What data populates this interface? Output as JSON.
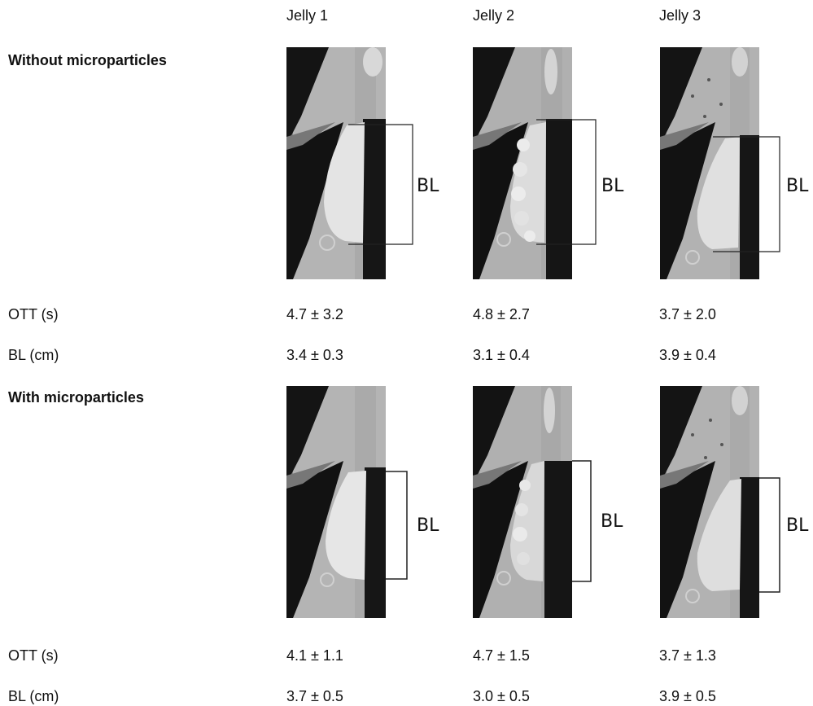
{
  "columns": [
    "Jelly 1",
    "Jelly 2",
    "Jelly 3"
  ],
  "sections": [
    {
      "title": "Without microparticles",
      "bracket_label": "BL",
      "rows": [
        {
          "label": "OTT (s)",
          "values": [
            "4.7 ± 3.2",
            "4.8 ± 2.7",
            "3.7 ± 2.0"
          ]
        },
        {
          "label": "BL (cm)",
          "values": [
            "3.4 ± 0.3",
            "3.1 ± 0.4",
            "3.9 ± 0.4"
          ]
        }
      ]
    },
    {
      "title": "With microparticles",
      "bracket_label": "BL",
      "rows": [
        {
          "label": "OTT (s)",
          "values": [
            "4.1 ± 1.1",
            "4.7 ± 1.5",
            "3.7 ± 1.3"
          ]
        },
        {
          "label": "BL (cm)",
          "values": [
            "3.7 ± 0.5",
            "3.0 ± 0.5",
            "3.9 ± 0.5"
          ]
        }
      ]
    }
  ]
}
